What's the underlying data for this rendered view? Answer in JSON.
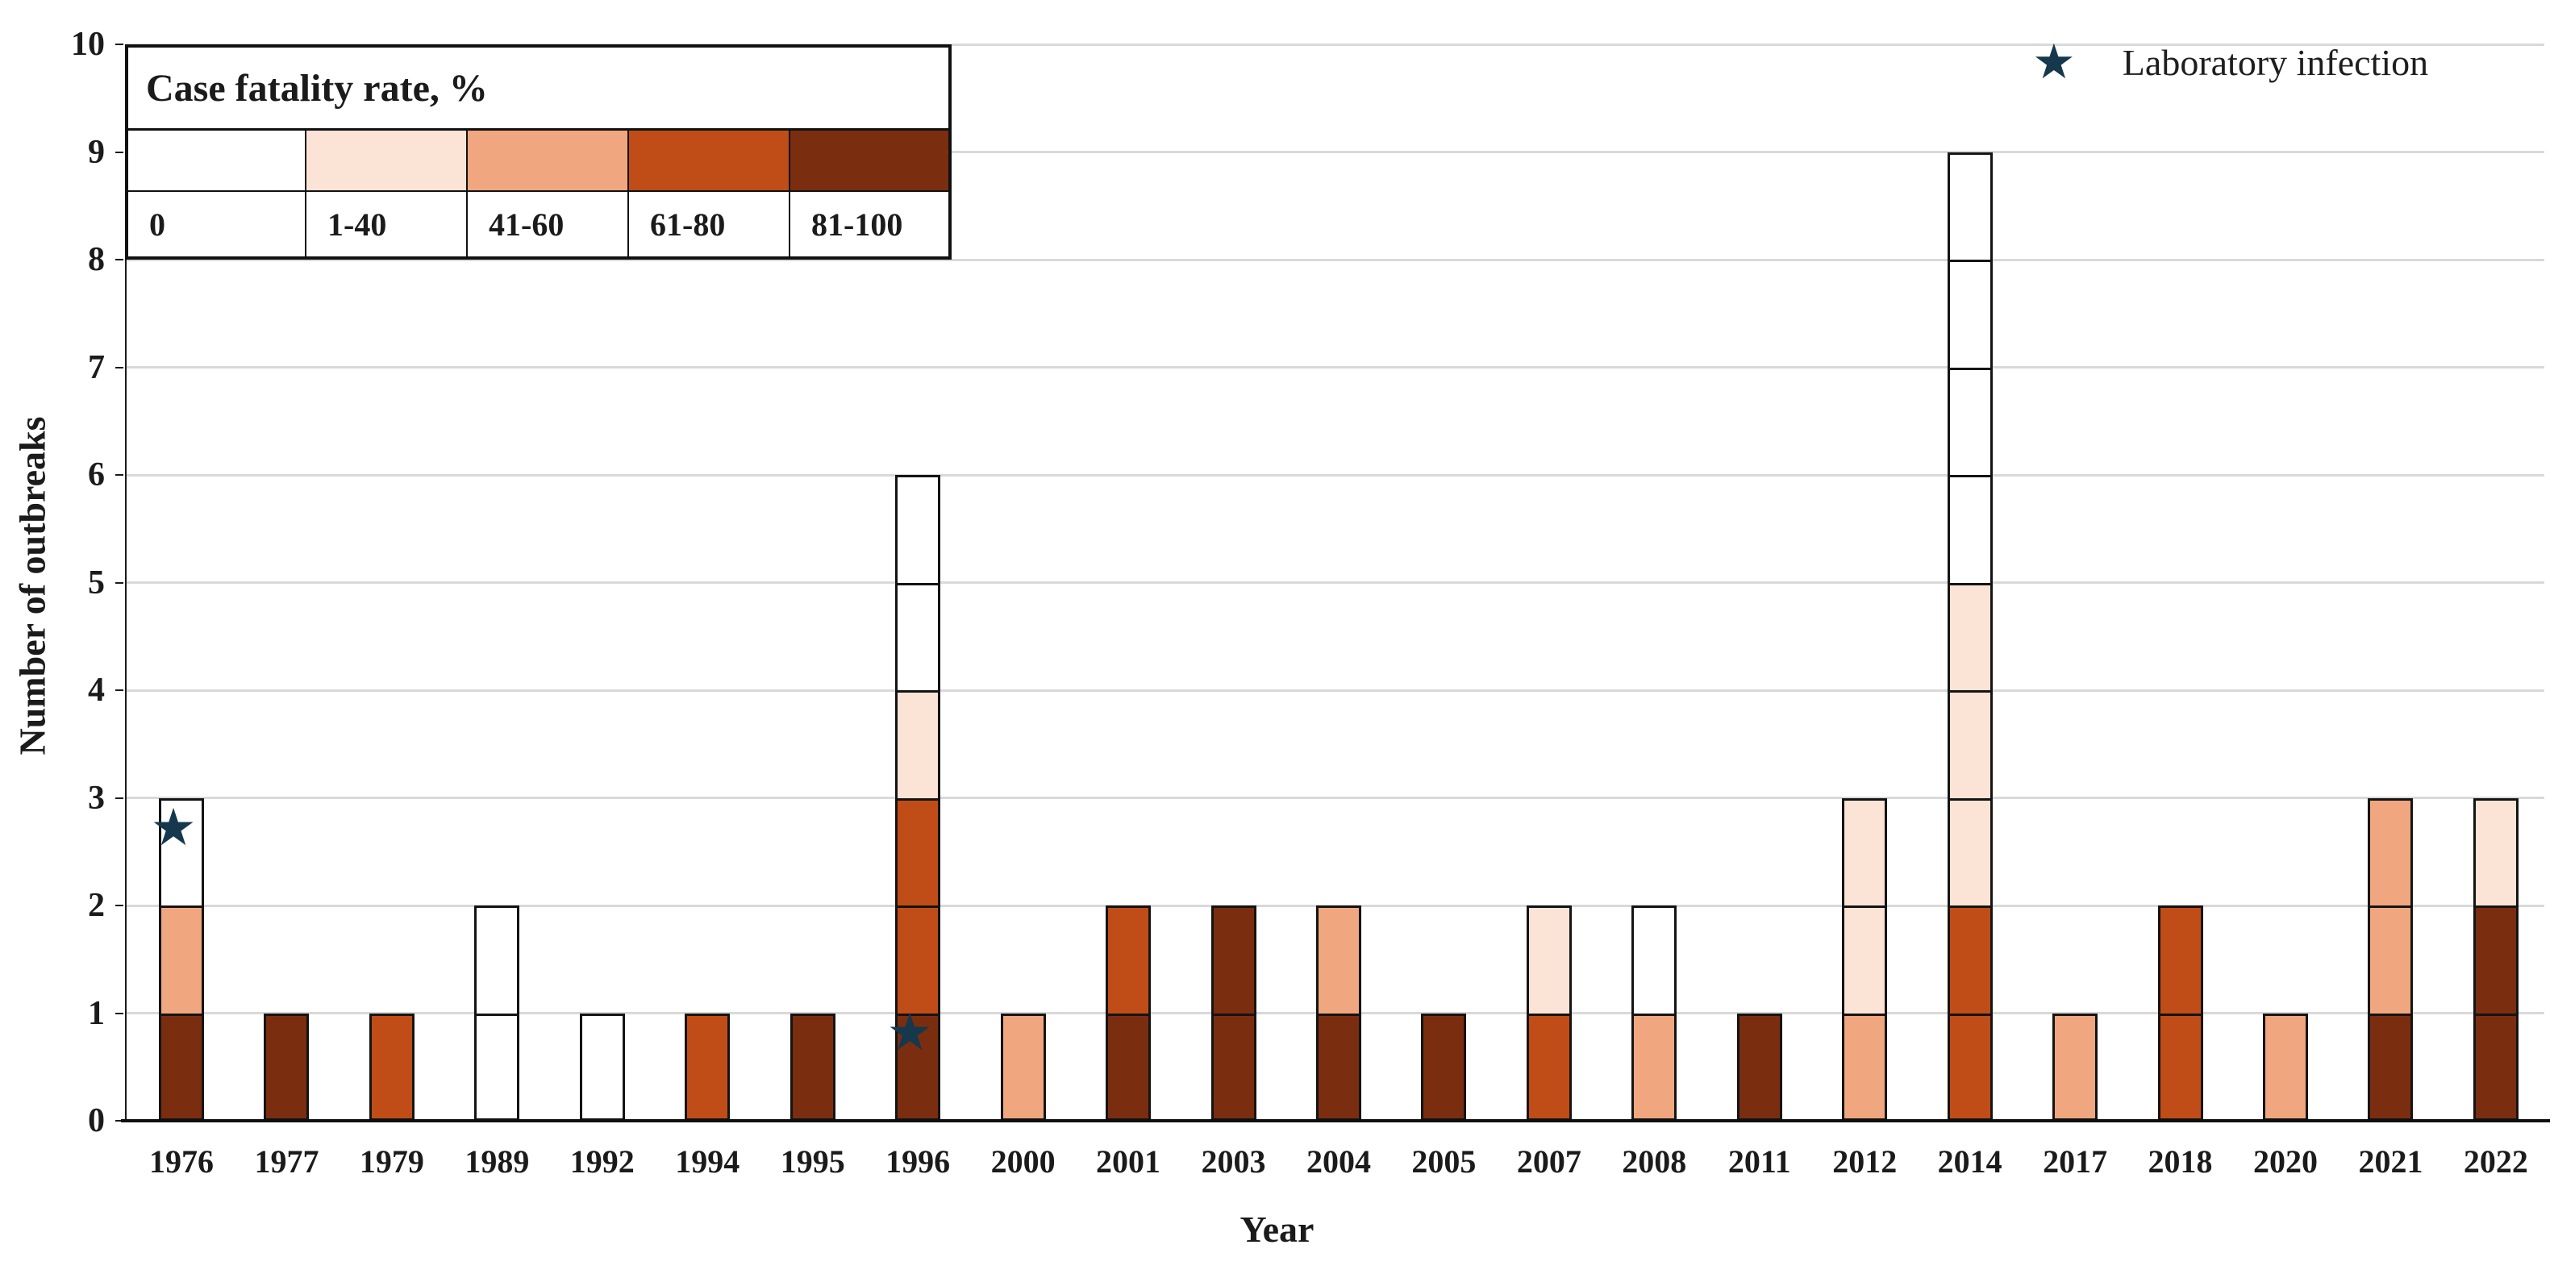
{
  "legend": {
    "title": "Case fatality rate, %",
    "bins": [
      {
        "label": "0",
        "color": "#FFFFFF"
      },
      {
        "label": "1-40",
        "color": "#FBE3D5"
      },
      {
        "label": "41-60",
        "color": "#F0A67E"
      },
      {
        "label": "61-80",
        "color": "#C04D17"
      },
      {
        "label": "81-100",
        "color": "#7B2D10"
      }
    ]
  },
  "star_legend": {
    "symbol": "★",
    "label": "Laboratory infection",
    "color": "#16384C"
  },
  "chart_data": {
    "type": "bar",
    "stacked": true,
    "title": "",
    "xlabel": "Year",
    "ylabel": "Number of outbreaks",
    "ylim": [
      0,
      10
    ],
    "y_ticks": [
      0,
      1,
      2,
      3,
      4,
      5,
      6,
      7,
      8,
      9,
      10
    ],
    "grid": "horizontal",
    "legend_title": "Case fatality rate, %",
    "legend_position": "top-left",
    "cfr_categories": [
      "0",
      "1-40",
      "41-60",
      "61-80",
      "81-100"
    ],
    "colors": {
      "0": "#FFFFFF",
      "1-40": "#FBE3D5",
      "41-60": "#F0A67E",
      "61-80": "#C04D17",
      "81-100": "#7B2D10",
      "bar_border": "#141414",
      "star": "#16384C",
      "gridline": "#D9D9D9"
    },
    "years": [
      "1976",
      "1977",
      "1979",
      "1989",
      "1992",
      "1994",
      "1995",
      "1996",
      "2000",
      "2001",
      "2003",
      "2004",
      "2005",
      "2007",
      "2008",
      "2011",
      "2012",
      "2014",
      "2017",
      "2018",
      "2020",
      "2021",
      "2022"
    ],
    "bars": [
      {
        "year": "1976",
        "total": 3,
        "segments_bottom_to_top": [
          "81-100",
          "41-60",
          "0"
        ]
      },
      {
        "year": "1977",
        "total": 1,
        "segments_bottom_to_top": [
          "81-100"
        ]
      },
      {
        "year": "1979",
        "total": 1,
        "segments_bottom_to_top": [
          "61-80"
        ]
      },
      {
        "year": "1989",
        "total": 2,
        "segments_bottom_to_top": [
          "0",
          "0"
        ]
      },
      {
        "year": "1992",
        "total": 1,
        "segments_bottom_to_top": [
          "0"
        ]
      },
      {
        "year": "1994",
        "total": 1,
        "segments_bottom_to_top": [
          "61-80"
        ]
      },
      {
        "year": "1995",
        "total": 1,
        "segments_bottom_to_top": [
          "81-100"
        ]
      },
      {
        "year": "1996",
        "total": 6,
        "segments_bottom_to_top": [
          "81-100",
          "61-80",
          "61-80",
          "1-40",
          "0",
          "0"
        ]
      },
      {
        "year": "2000",
        "total": 1,
        "segments_bottom_to_top": [
          "41-60"
        ]
      },
      {
        "year": "2001",
        "total": 2,
        "segments_bottom_to_top": [
          "81-100",
          "61-80"
        ]
      },
      {
        "year": "2003",
        "total": 2,
        "segments_bottom_to_top": [
          "81-100",
          "81-100"
        ]
      },
      {
        "year": "2004",
        "total": 2,
        "segments_bottom_to_top": [
          "81-100",
          "41-60"
        ]
      },
      {
        "year": "2005",
        "total": 1,
        "segments_bottom_to_top": [
          "81-100"
        ]
      },
      {
        "year": "2007",
        "total": 2,
        "segments_bottom_to_top": [
          "61-80",
          "1-40"
        ]
      },
      {
        "year": "2008",
        "total": 2,
        "segments_bottom_to_top": [
          "41-60",
          "0"
        ]
      },
      {
        "year": "2011",
        "total": 1,
        "segments_bottom_to_top": [
          "81-100"
        ]
      },
      {
        "year": "2012",
        "total": 3,
        "segments_bottom_to_top": [
          "41-60",
          "1-40",
          "1-40"
        ]
      },
      {
        "year": "2014",
        "total": 9,
        "segments_bottom_to_top": [
          "61-80",
          "61-80",
          "1-40",
          "1-40",
          "1-40",
          "0",
          "0",
          "0",
          "0"
        ]
      },
      {
        "year": "2017",
        "total": 1,
        "segments_bottom_to_top": [
          "41-60"
        ]
      },
      {
        "year": "2018",
        "total": 2,
        "segments_bottom_to_top": [
          "61-80",
          "61-80"
        ]
      },
      {
        "year": "2020",
        "total": 1,
        "segments_bottom_to_top": [
          "41-60"
        ]
      },
      {
        "year": "2021",
        "total": 3,
        "segments_bottom_to_top": [
          "81-100",
          "41-60",
          "41-60"
        ]
      },
      {
        "year": "2022",
        "total": 3,
        "segments_bottom_to_top": [
          "81-100",
          "81-100",
          "1-40"
        ]
      }
    ],
    "star_annotations": [
      {
        "year": "1976",
        "at_value": 2.72,
        "meaning": "Laboratory infection"
      },
      {
        "year": "1996",
        "at_value": 0.82,
        "meaning": "Laboratory infection"
      }
    ]
  }
}
